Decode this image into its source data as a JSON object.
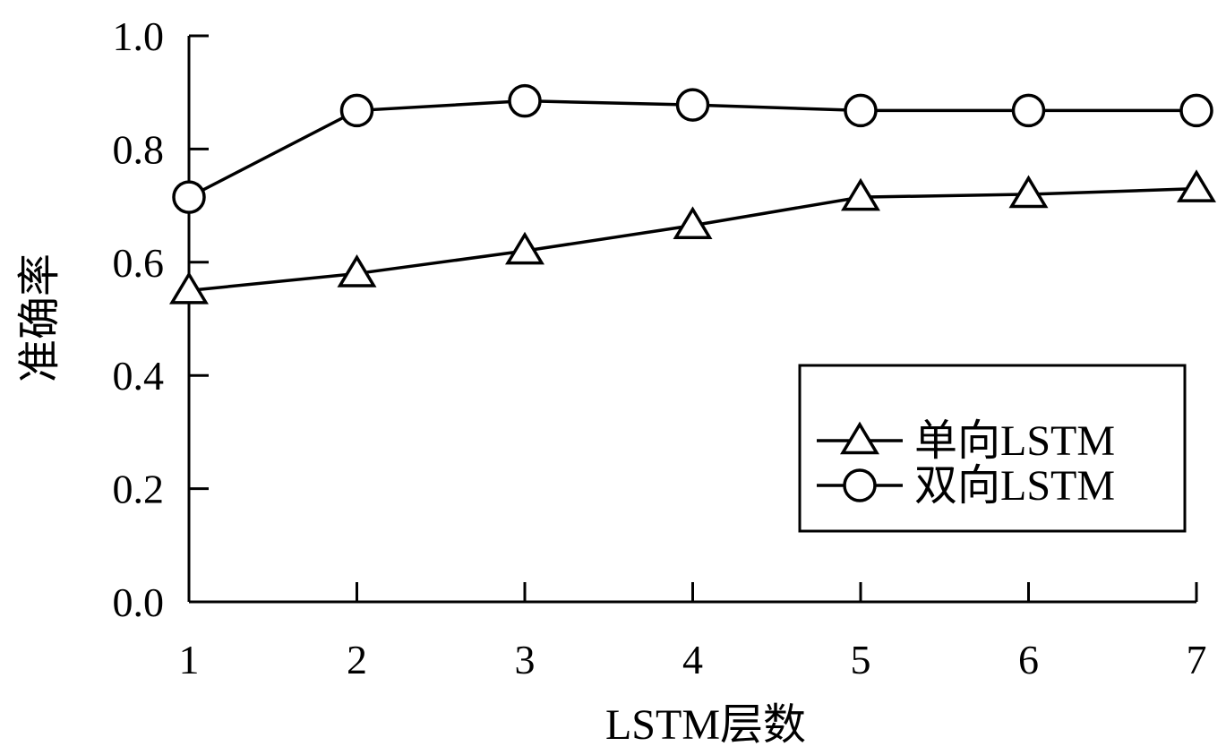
{
  "chart_data": {
    "type": "line",
    "title": "",
    "xlabel": "LSTM层数",
    "ylabel": "准确率",
    "x": [
      1,
      2,
      3,
      4,
      5,
      6,
      7
    ],
    "xticks": [
      "1",
      "2",
      "3",
      "4",
      "5",
      "6",
      "7"
    ],
    "xlim": [
      1,
      7
    ],
    "ylim": [
      0.0,
      1.0
    ],
    "yticks": [
      "0.0",
      "0.2",
      "0.4",
      "0.6",
      "0.8",
      "1.0"
    ],
    "grid": false,
    "legend_position": "bottom-right",
    "series": [
      {
        "name": "单向LSTM",
        "marker": "triangle",
        "values": [
          0.55,
          0.58,
          0.62,
          0.665,
          0.715,
          0.72,
          0.73
        ]
      },
      {
        "name": "双向LSTM",
        "marker": "circle",
        "values": [
          0.715,
          0.868,
          0.885,
          0.878,
          0.868,
          0.868,
          0.868
        ]
      }
    ]
  }
}
